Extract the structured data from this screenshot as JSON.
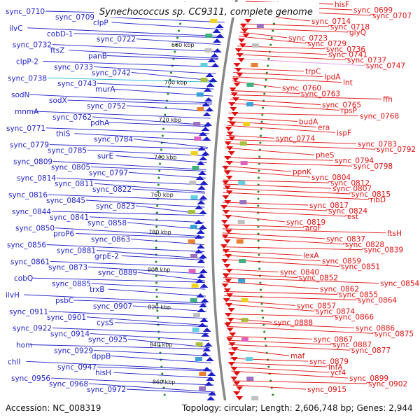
{
  "title": "Synechococcus sp. CC9311, complete genome",
  "footer": {
    "accession": "Accession: NC_008319",
    "topology": "Topology: circular; Length: 2,606,748 bp; Genes: 2,944"
  },
  "colors": {
    "forward": "#1f1fc8",
    "reverse": "#e01010",
    "highlight_forward": "#19b4d8",
    "highlight_reverse": "#e59ae0",
    "gc_dots": "#1f8a1f"
  },
  "kbp_ticks": [
    "680 kbp",
    "700 kbp",
    "720 kbp",
    "740 kbp",
    "760 kbp",
    "780 kbp",
    "800 kbp",
    "820 kbp",
    "840 kbp",
    "860 kbp"
  ],
  "left_labels": [
    {
      "text": "sync_0710"
    },
    {
      "text": "sync_0709"
    },
    {
      "text": "clpP"
    },
    {
      "text": "ilvC"
    },
    {
      "text": "cobD-1"
    },
    {
      "text": "sync_0722"
    },
    {
      "text": "sync_0732"
    },
    {
      "text": "ftsZ"
    },
    {
      "text": "panB"
    },
    {
      "text": "clpP-2"
    },
    {
      "text": "sync_0733"
    },
    {
      "text": "sync_0742"
    },
    {
      "text": "sync_0738"
    },
    {
      "text": "sync_0743"
    },
    {
      "text": "murA"
    },
    {
      "text": "sodN"
    },
    {
      "text": "sodX"
    },
    {
      "text": "sync_0752"
    },
    {
      "text": "mnmA"
    },
    {
      "text": "sync_0762"
    },
    {
      "text": "pdhA"
    },
    {
      "text": "sync_0771"
    },
    {
      "text": "thiS"
    },
    {
      "text": "sync_0784"
    },
    {
      "text": "sync_0779"
    },
    {
      "text": "sync_0785"
    },
    {
      "text": "surE"
    },
    {
      "text": "sync_0809"
    },
    {
      "text": "sync_0805"
    },
    {
      "text": "sync_0797"
    },
    {
      "text": "sync_0814"
    },
    {
      "text": "sync_0811"
    },
    {
      "text": "sync_0822"
    },
    {
      "text": "sync_0816"
    },
    {
      "text": "sync_0845"
    },
    {
      "text": "sync_0823"
    },
    {
      "text": "sync_0844"
    },
    {
      "text": "sync_0841"
    },
    {
      "text": "sync_0858"
    },
    {
      "text": "sync_0850"
    },
    {
      "text": "proP6"
    },
    {
      "text": "sync_0863"
    },
    {
      "text": "sync_0856"
    },
    {
      "text": "sync_0881"
    },
    {
      "text": "grpE-2"
    },
    {
      "text": "sync_0861"
    },
    {
      "text": "sync_0873"
    },
    {
      "text": "sync_0889"
    },
    {
      "text": "cobQ"
    },
    {
      "text": "sync_0885"
    },
    {
      "text": "trxB"
    },
    {
      "text": "ilvH"
    },
    {
      "text": "psbC"
    },
    {
      "text": "sync_0907"
    },
    {
      "text": "sync_0911"
    },
    {
      "text": "sync_0901"
    },
    {
      "text": "cysS"
    },
    {
      "text": "sync_0922"
    },
    {
      "text": "sync_0914"
    },
    {
      "text": "sync_0925"
    },
    {
      "text": "hom"
    },
    {
      "text": "sync_0929"
    },
    {
      "text": "dppB"
    },
    {
      "text": "chlI"
    },
    {
      "text": "sync_0947"
    },
    {
      "text": "hisH"
    },
    {
      "text": "sync_0956"
    },
    {
      "text": "sync_0968"
    },
    {
      "text": "sync_0972"
    }
  ],
  "right_labels": [
    {
      "text": "hisF"
    },
    {
      "text": "sync_0699"
    },
    {
      "text": "sync_0707"
    },
    {
      "text": "sync_0714"
    },
    {
      "text": "sync_0718"
    },
    {
      "text": "glyQ"
    },
    {
      "text": "sync_0723"
    },
    {
      "text": "sync_0729"
    },
    {
      "text": "sync_0736"
    },
    {
      "text": "sync_0741"
    },
    {
      "text": "sync_0737"
    },
    {
      "text": "sync_0747"
    },
    {
      "text": "trpC"
    },
    {
      "text": "lpdA"
    },
    {
      "text": "lnt"
    },
    {
      "text": "sync_0760"
    },
    {
      "text": "sync_0763"
    },
    {
      "text": "ffh"
    },
    {
      "text": "sync_0765"
    },
    {
      "text": "rpsP"
    },
    {
      "text": "sync_0768"
    },
    {
      "text": "budA"
    },
    {
      "text": "era"
    },
    {
      "text": "ispF"
    },
    {
      "text": "sync_0774"
    },
    {
      "text": "sync_0783"
    },
    {
      "text": "sync_0792"
    },
    {
      "text": "pheS"
    },
    {
      "text": "sync_0794"
    },
    {
      "text": "sync_0798"
    },
    {
      "text": "ppnK"
    },
    {
      "text": "sync_0804"
    },
    {
      "text": "sync_0812"
    },
    {
      "text": "sync_0807"
    },
    {
      "text": "sync_0815"
    },
    {
      "text": "ribD"
    },
    {
      "text": "sync_0817"
    },
    {
      "text": "sync_0824"
    },
    {
      "text": "est"
    },
    {
      "text": "sync_0819"
    },
    {
      "text": "argF"
    },
    {
      "text": "ftsH"
    },
    {
      "text": "sync_0837"
    },
    {
      "text": "sync_0828"
    },
    {
      "text": "sync_0839"
    },
    {
      "text": "lexA"
    },
    {
      "text": "sync_0859"
    },
    {
      "text": "sync_0851"
    },
    {
      "text": "sync_0840"
    },
    {
      "text": "sync_0852"
    },
    {
      "text": "sync_0854"
    },
    {
      "text": "sync_0862"
    },
    {
      "text": "sync_0855"
    },
    {
      "text": "sync_0864"
    },
    {
      "text": "sync_0857"
    },
    {
      "text": "sync_0874"
    },
    {
      "text": "sync_0866"
    },
    {
      "text": "sync_0888"
    },
    {
      "text": "sync_0886"
    },
    {
      "text": "sync_0875"
    },
    {
      "text": "sync_0867"
    },
    {
      "text": "sync_0887"
    },
    {
      "text": "sync_0877"
    },
    {
      "text": "maf"
    },
    {
      "text": "sync_0879"
    },
    {
      "text": "infA"
    },
    {
      "text": "ycf4"
    },
    {
      "text": "sync_0899"
    },
    {
      "text": "sync_0902"
    },
    {
      "text": "sync_0915"
    }
  ]
}
